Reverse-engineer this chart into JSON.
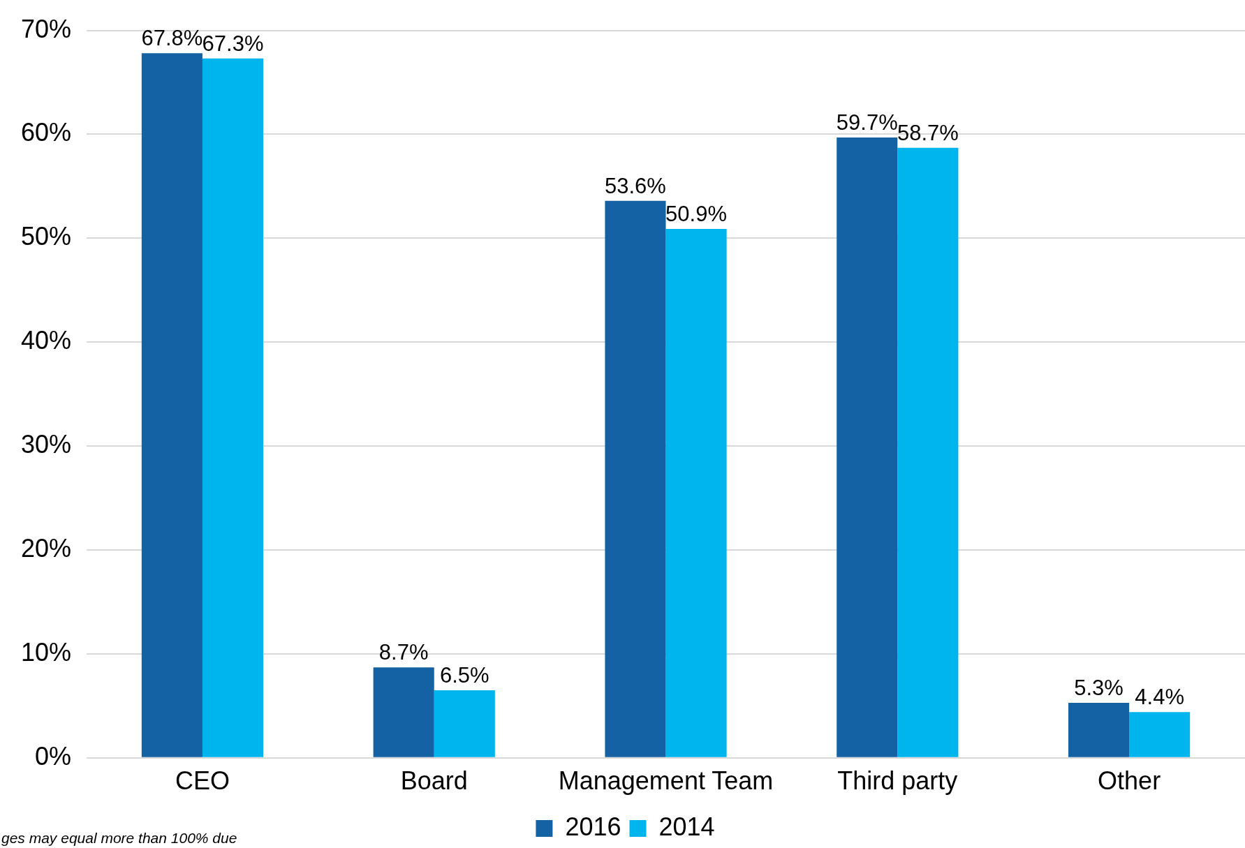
{
  "chart_data": {
    "type": "bar",
    "categories": [
      "CEO",
      "Board",
      "Management Team",
      "Third party",
      "Other"
    ],
    "series": [
      {
        "name": "2016",
        "color": "#1462a3",
        "values": [
          67.8,
          8.7,
          53.6,
          59.7,
          5.3
        ],
        "value_labels": [
          "67.8%",
          "8.7%",
          "53.6%",
          "59.7%",
          "5.3%"
        ]
      },
      {
        "name": "2014",
        "color": "#00b4ee",
        "values": [
          67.3,
          6.5,
          50.9,
          58.7,
          4.4
        ],
        "value_labels": [
          "67.3%",
          "6.5%",
          "50.9%",
          "58.7%",
          "4.4%"
        ]
      }
    ],
    "ylim": [
      0,
      70
    ],
    "yticks": [
      {
        "value": 0,
        "label": "0%"
      },
      {
        "value": 10,
        "label": "10%"
      },
      {
        "value": 20,
        "label": "20%"
      },
      {
        "value": 30,
        "label": "30%"
      },
      {
        "value": 40,
        "label": "40%"
      },
      {
        "value": 50,
        "label": "50%"
      },
      {
        "value": 60,
        "label": "60%"
      },
      {
        "value": 70,
        "label": "70%"
      }
    ],
    "grid": "y",
    "legend": "bottom",
    "annotations": [
      "ges may equal more than 100% due"
    ]
  }
}
